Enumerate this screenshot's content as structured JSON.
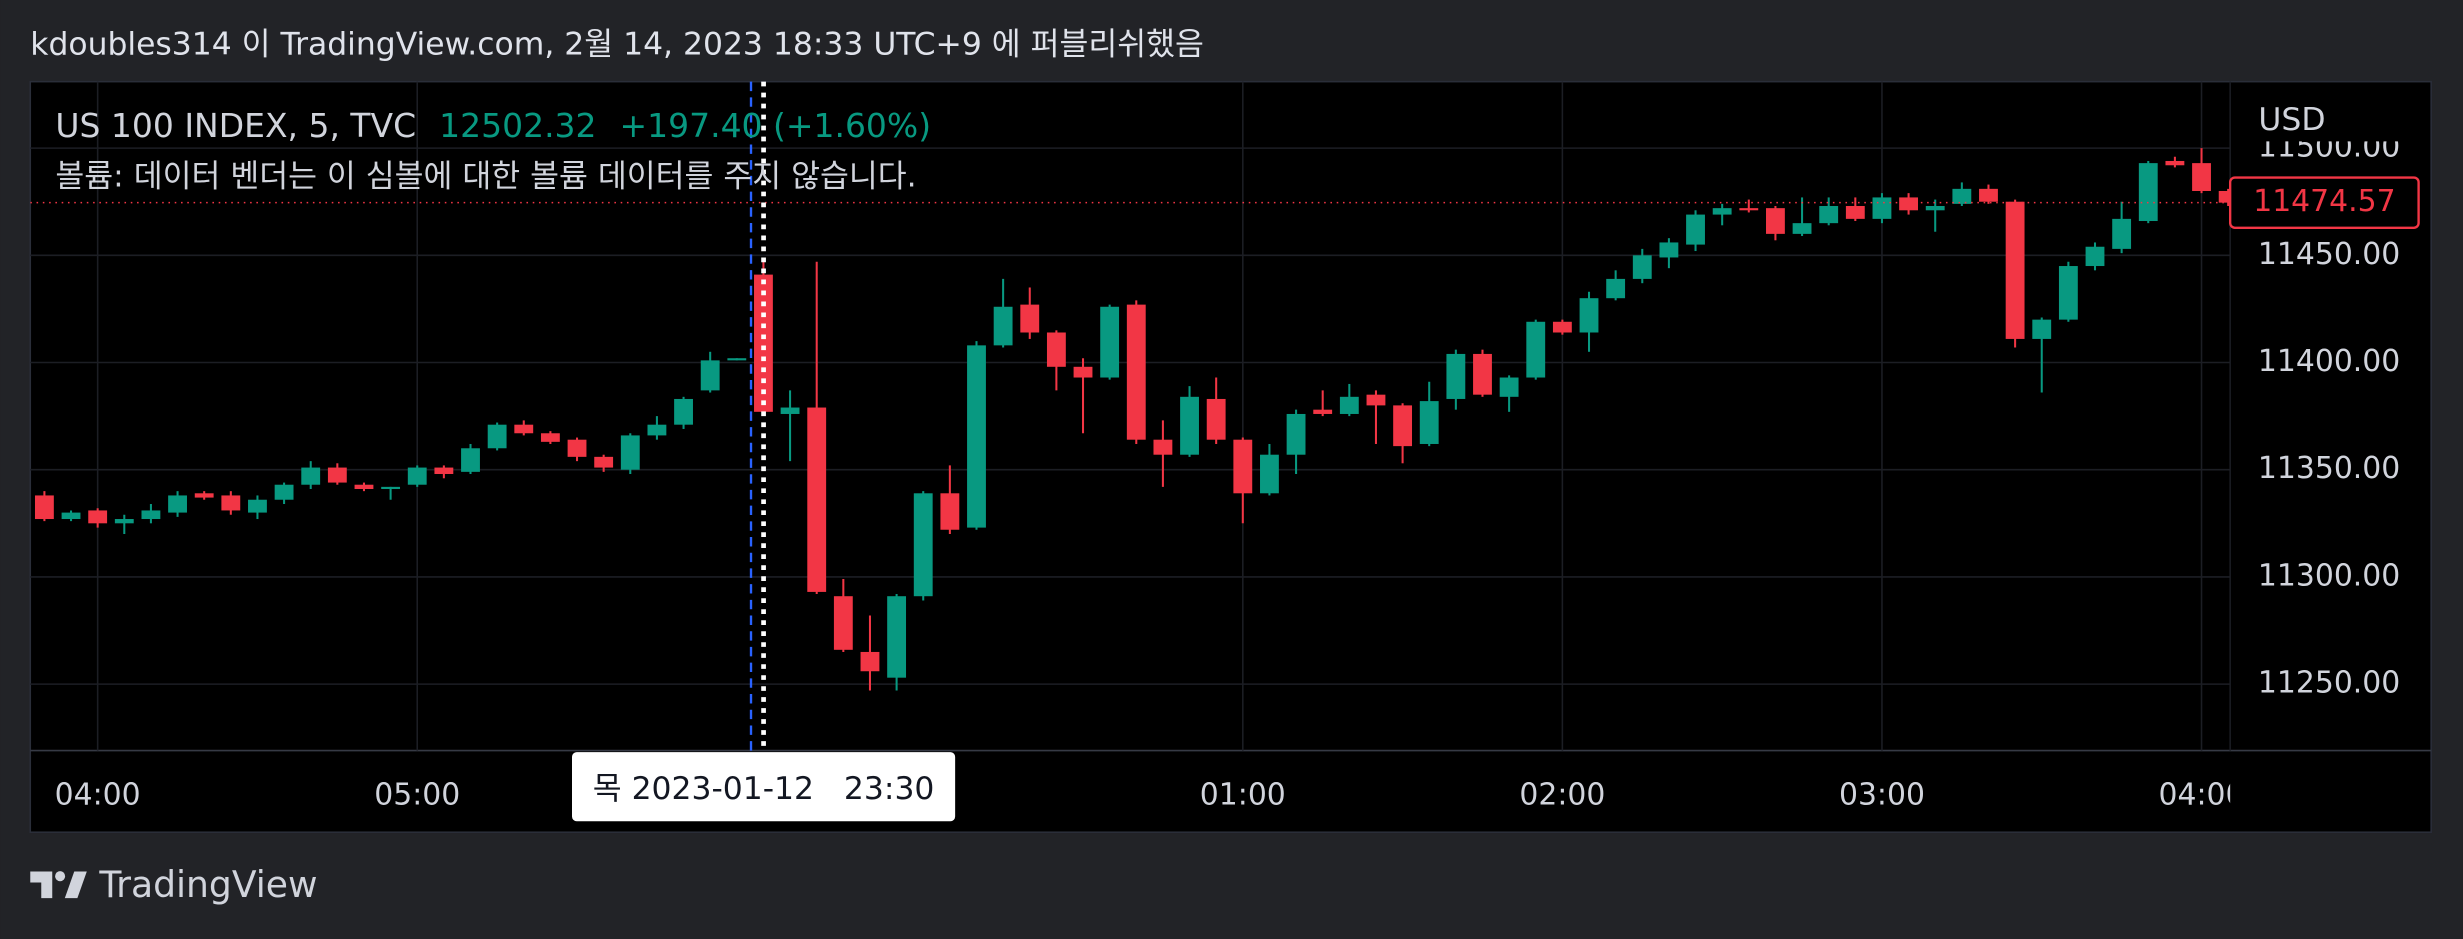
{
  "header": "kdoubles314 이 TradingView.com, 2월 14, 2023 18:33 UTC+9 에 퍼블리쉬했음",
  "footer": "TradingView",
  "chart_data": {
    "type": "candlestick",
    "legend": {
      "symbol": "US 100 INDEX, 5, TVC",
      "price": 12502.32,
      "change": "+197.40 (+1.60%)"
    },
    "note": "볼륨: 데이터 벤더는 이 심볼에 대한 볼륨 데이터를 주지 않습니다.",
    "y_axis_label": "USD",
    "crosshair_label": "목 2023-01-12   23:30",
    "last_price": 11474.57,
    "up_color": "#089981",
    "down_color": "#f23645",
    "grid": true,
    "categories": [
      null,
      null,
      "04:00",
      null,
      null,
      null,
      null,
      null,
      null,
      null,
      null,
      null,
      null,
      null,
      "05:00",
      null,
      null,
      null,
      null,
      null,
      null,
      null,
      null,
      null,
      null,
      null,
      null,
      null,
      null,
      null,
      null,
      null,
      null,
      null,
      null,
      null,
      null,
      null,
      null,
      null,
      null,
      null,
      null,
      null,
      null,
      "01:00",
      null,
      null,
      null,
      null,
      null,
      null,
      null,
      null,
      null,
      null,
      null,
      "02:00",
      null,
      null,
      null,
      null,
      null,
      null,
      null,
      null,
      null,
      null,
      null,
      "03:00",
      null,
      null,
      null,
      null,
      null,
      null,
      null,
      null,
      null,
      null,
      null,
      "04:00",
      null
    ],
    "open": [
      11338,
      11327,
      11331,
      11325,
      11327,
      11330,
      11339,
      11338,
      11330,
      11336,
      11343,
      11351,
      11343,
      11341,
      11343,
      11351,
      11349,
      11360,
      11371,
      11367,
      11364,
      11356,
      11350,
      11366,
      11371,
      11387,
      11401,
      11441,
      11376,
      11379,
      11291,
      11265,
      11253,
      11291,
      11339,
      11323,
      11408,
      11427,
      11414,
      11398,
      11393,
      11427,
      11364,
      11357,
      11383,
      11364,
      11339,
      11357,
      11378,
      11376,
      11385,
      11380,
      11362,
      11383,
      11404,
      11384,
      11393,
      11419,
      11414,
      11430,
      11439,
      11449,
      11455,
      11469,
      11472,
      11472,
      11460,
      11465,
      11473,
      11467,
      11477,
      11471,
      11474,
      11481,
      11475,
      11411,
      11420,
      11445,
      11453,
      11466,
      11494,
      11493,
      11480
    ],
    "high": [
      11340,
      11331,
      11332,
      11329,
      11334,
      11340,
      11340,
      11340,
      11338,
      11344,
      11354,
      11353,
      11344,
      11342,
      11352,
      11352,
      11362,
      11372,
      11373,
      11368,
      11365,
      11357,
      11367,
      11375,
      11384,
      11405,
      11402,
      11448,
      11387,
      11447,
      11299,
      11282,
      11292,
      11340,
      11352,
      11410,
      11439,
      11435,
      11415,
      11402,
      11427,
      11429,
      11373,
      11389,
      11393,
      11365,
      11362,
      11378,
      11387,
      11390,
      11387,
      11381,
      11391,
      11406,
      11406,
      11394,
      11420,
      11420,
      11433,
      11443,
      11453,
      11458,
      11471,
      11474,
      11476,
      11473,
      11477,
      11477,
      11477,
      11479,
      11479,
      11476,
      11484,
      11483,
      11476,
      11421,
      11447,
      11456,
      11475,
      11494,
      11496,
      11500,
      11481
    ],
    "low": [
      11326,
      11326,
      11323,
      11320,
      11325,
      11328,
      11336,
      11329,
      11327,
      11334,
      11341,
      11343,
      11340,
      11336,
      11342,
      11346,
      11348,
      11359,
      11366,
      11362,
      11354,
      11349,
      11348,
      11364,
      11369,
      11386,
      11401,
      11376,
      11354,
      11292,
      11265,
      11247,
      11247,
      11289,
      11320,
      11322,
      11407,
      11411,
      11387,
      11367,
      11392,
      11362,
      11342,
      11356,
      11362,
      11325,
      11338,
      11348,
      11375,
      11375,
      11362,
      11353,
      11361,
      11378,
      11384,
      11377,
      11392,
      11413,
      11405,
      11429,
      11437,
      11444,
      11452,
      11464,
      11470,
      11457,
      11459,
      11464,
      11466,
      11465,
      11469,
      11461,
      11473,
      11474,
      11407,
      11386,
      11419,
      11443,
      11451,
      11465,
      11491,
      11479,
      11473
    ],
    "close": [
      11327,
      11330,
      11325,
      11327,
      11331,
      11338,
      11337,
      11331,
      11336,
      11343,
      11351,
      11344,
      11341,
      11342,
      11351,
      11348,
      11360,
      11371,
      11367,
      11363,
      11356,
      11351,
      11366,
      11371,
      11383,
      11401,
      11402,
      11377,
      11379,
      11293,
      11266,
      11256,
      11291,
      11339,
      11322,
      11408,
      11426,
      11414,
      11398,
      11393,
      11426,
      11364,
      11357,
      11384,
      11364,
      11339,
      11357,
      11376,
      11376,
      11384,
      11380,
      11361,
      11382,
      11404,
      11385,
      11393,
      11419,
      11414,
      11430,
      11439,
      11450,
      11456,
      11469,
      11472,
      11471,
      11460,
      11465,
      11473,
      11467,
      11477,
      11471,
      11473,
      11481,
      11475,
      11411,
      11420,
      11445,
      11454,
      11467,
      11493,
      11492,
      11480,
      11474.57
    ],
    "ylim": [
      11219,
      11531
    ],
    "yticks": [
      {
        "value": 11250,
        "label": "11250.00"
      },
      {
        "value": 11300,
        "label": "11300.00"
      },
      {
        "value": 11350,
        "label": "11350.00"
      },
      {
        "value": 11400,
        "label": "11400.00"
      },
      {
        "value": 11450,
        "label": "11450.00"
      },
      {
        "value": 11500,
        "label": "11500.00"
      }
    ]
  }
}
